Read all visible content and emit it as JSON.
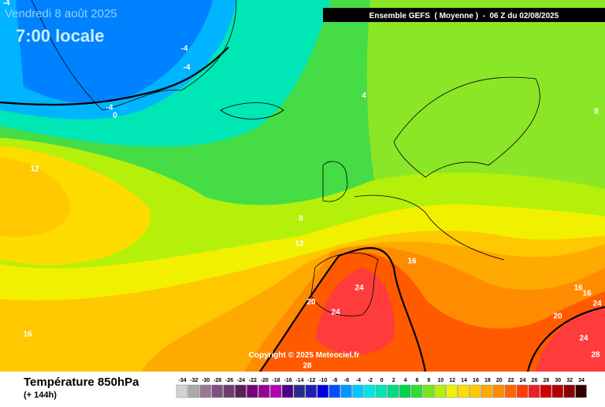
{
  "header": {
    "date": "Vendredi 8 août 2025",
    "time": "7:00 locale",
    "model": "Ensemble GEFS  ( Moyenne )  -  06 Z du 02/08/2025"
  },
  "copyright": "Copyright © 2025 Meteociel.fr",
  "footer": {
    "title": "Température 850hPa",
    "lead": "(+ 144h)"
  },
  "contour_labels": [
    -4,
    -4,
    -4,
    -4,
    0,
    4,
    8,
    12,
    8,
    12,
    16,
    20,
    24,
    24,
    16,
    28,
    16,
    16,
    24,
    20,
    24,
    28
  ],
  "legend": {
    "values": [
      -34,
      -32,
      -30,
      -28,
      -26,
      -24,
      -22,
      -20,
      -18,
      -16,
      -14,
      -12,
      -10,
      -8,
      -6,
      -4,
      -2,
      0,
      2,
      4,
      6,
      8,
      10,
      12,
      14,
      16,
      18,
      20,
      22,
      24,
      26,
      28,
      30,
      32,
      34
    ],
    "colors": [
      "#d2d2d2",
      "#aaaaaa",
      "#967896",
      "#80507f",
      "#6e3c6e",
      "#5a1e5a",
      "#780078",
      "#960096",
      "#b400b4",
      "#4b0082",
      "#2a2a8c",
      "#1e1eb4",
      "#0000dc",
      "#0050ff",
      "#0096ff",
      "#00c8ff",
      "#00e6e6",
      "#00e6b4",
      "#00dc82",
      "#00d250",
      "#32dc32",
      "#78e61e",
      "#b4f00a",
      "#f0f000",
      "#ffdc00",
      "#ffc800",
      "#ffaa00",
      "#ff8c00",
      "#ff6400",
      "#ff3c00",
      "#f01e1e",
      "#d20000",
      "#b40000",
      "#8c0000",
      "#320000"
    ]
  }
}
